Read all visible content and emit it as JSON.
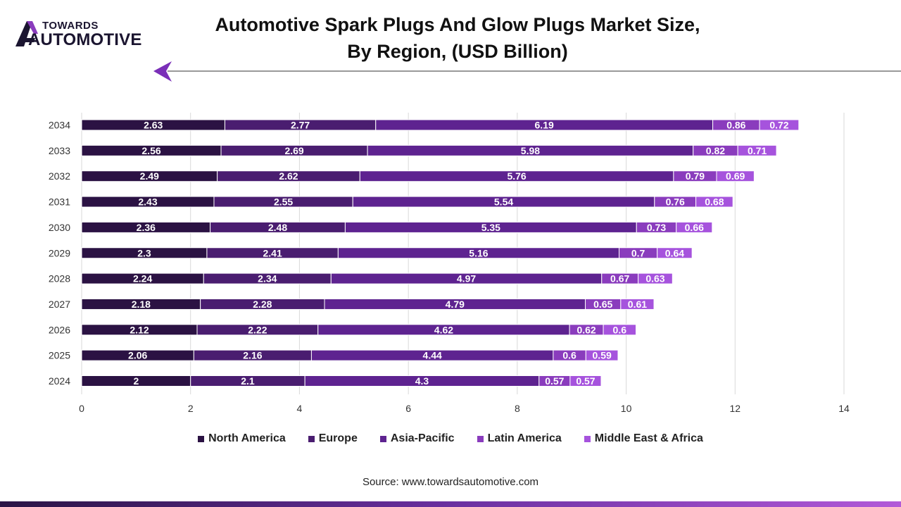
{
  "logo": {
    "line1": "TOWARDS",
    "line2": "AUTOMOTIVE"
  },
  "title": {
    "line1": "Automotive Spark Plugs And Glow Plugs Market Size,",
    "line2": "By Region, (USD Billion)"
  },
  "source": "Source: www.towardsautomotive.com",
  "chart_data": {
    "type": "bar",
    "orientation": "horizontal",
    "stacked": true,
    "title": "Automotive Spark Plugs And Glow Plugs Market Size, By Region, (USD Billion)",
    "categories": [
      "2034",
      "2033",
      "2032",
      "2031",
      "2030",
      "2029",
      "2028",
      "2027",
      "2026",
      "2025",
      "2024"
    ],
    "series": [
      {
        "name": "North America",
        "color": "#2b1243",
        "values": [
          2.63,
          2.56,
          2.49,
          2.43,
          2.36,
          2.3,
          2.24,
          2.18,
          2.12,
          2.06,
          2
        ],
        "labels": [
          "2.63",
          "2.56",
          "2.49",
          "2.43",
          "2.36",
          "2.3",
          "2.24",
          "2.18",
          "2.12",
          "2.06",
          "2"
        ]
      },
      {
        "name": "Europe",
        "color": "#4a1d70",
        "values": [
          2.77,
          2.69,
          2.62,
          2.55,
          2.48,
          2.41,
          2.34,
          2.28,
          2.22,
          2.16,
          2.1
        ],
        "labels": [
          "2.77",
          "2.69",
          "2.62",
          "2.55",
          "2.48",
          "2.41",
          "2.34",
          "2.28",
          "2.22",
          "2.16",
          "2.1"
        ]
      },
      {
        "name": "Asia-Pacific",
        "color": "#5e2390",
        "values": [
          6.19,
          5.98,
          5.76,
          5.54,
          5.35,
          5.16,
          4.97,
          4.79,
          4.62,
          4.44,
          4.3
        ],
        "labels": [
          "6.19",
          "5.98",
          "5.76",
          "5.54",
          "5.35",
          "5.16",
          "4.97",
          "4.79",
          "4.62",
          "4.44",
          "4.3"
        ]
      },
      {
        "name": "Latin America",
        "color": "#8a3cbd",
        "values": [
          0.86,
          0.82,
          0.79,
          0.76,
          0.73,
          0.7,
          0.67,
          0.65,
          0.62,
          0.6,
          0.57
        ],
        "labels": [
          "0.86",
          "0.82",
          "0.79",
          "0.76",
          "0.73",
          "0.7",
          "0.67",
          "0.65",
          "0.62",
          "0.6",
          "0.57"
        ]
      },
      {
        "name": "Middle East & Africa",
        "color": "#a653dd",
        "values": [
          0.72,
          0.71,
          0.69,
          0.68,
          0.66,
          0.64,
          0.63,
          0.61,
          0.6,
          0.59,
          0.57
        ],
        "labels": [
          "0.72",
          "0.71",
          "0.69",
          "0.68",
          "0.66",
          "0.64",
          "0.63",
          "0.61",
          "0.6",
          "0.59",
          "0.57"
        ]
      }
    ],
    "xlim": [
      0,
      14
    ],
    "xticks": [
      "0",
      "2",
      "4",
      "6",
      "8",
      "10",
      "12",
      "14"
    ],
    "grid": true,
    "legend": "bottom"
  }
}
